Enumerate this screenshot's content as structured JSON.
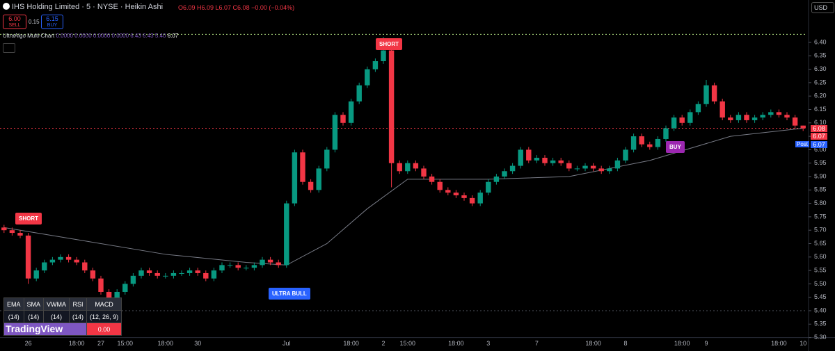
{
  "header": {
    "title": "IHS Holding Limited · 5 · NYSE · Heikin Ashi",
    "ohlc": "O6.09 H6.09 L6.07 C6.08 −0.00 (−0.04%)",
    "sell_price": "6.00",
    "sell": "SELL",
    "spread": "0.15",
    "buy_price": "6.15",
    "buy": "BUY",
    "currency": "USD",
    "indicator": "UltraAlgo Multi-Chart",
    "indicator_values": "0.0000 0.0000 0.0000 0.0000 6.43 6.43 5.40",
    "indicator_last": "6.07"
  },
  "price_labels": {
    "last": "6.08",
    "prev": "6.07",
    "post": "Post",
    "post_price": "6.07"
  },
  "signals": {
    "short_1": "SHORT",
    "ultra_bull": "ULTRA BULL",
    "short_2": "SHORT",
    "buy": "BUY"
  },
  "table": {
    "header": [
      "EMA",
      "SMA",
      "VWMA",
      "RSI",
      "MACD"
    ],
    "params": [
      "(14)",
      "(14)",
      "(14)",
      "(14)",
      "(12, 26, 9)"
    ],
    "macd_value": "0.00"
  },
  "logo": "TradingView",
  "chart_data": {
    "type": "candlestick",
    "up_color": "#089981",
    "down_color": "#f23645",
    "categories": [
      null,
      null,
      null,
      "26",
      null,
      null,
      null,
      null,
      null,
      "18:00",
      null,
      null,
      "27",
      null,
      null,
      "15:00",
      null,
      null,
      null,
      null,
      "18:00",
      null,
      null,
      null,
      "30",
      null,
      null,
      null,
      null,
      null,
      null,
      null,
      null,
      null,
      null,
      "Jul",
      null,
      null,
      null,
      null,
      null,
      null,
      null,
      "18:00",
      null,
      null,
      null,
      "2",
      null,
      null,
      "15:00",
      null,
      null,
      null,
      null,
      null,
      "18:00",
      null,
      null,
      null,
      "3",
      null,
      null,
      null,
      null,
      null,
      "7",
      null,
      null,
      null,
      null,
      null,
      null,
      "18:00",
      null,
      null,
      null,
      "8",
      null,
      null,
      null,
      null,
      null,
      null,
      "18:00",
      null,
      null,
      "9",
      null,
      null,
      null,
      null,
      null,
      null,
      null,
      null,
      "18:00",
      null,
      null,
      "10"
    ],
    "open": [
      5.71,
      5.7,
      5.69,
      5.68,
      5.52,
      5.55,
      5.58,
      5.59,
      5.6,
      5.59,
      5.58,
      5.55,
      5.52,
      5.47,
      5.43,
      5.47,
      5.5,
      5.53,
      5.55,
      5.54,
      5.53,
      5.53,
      5.54,
      5.54,
      5.55,
      5.54,
      5.52,
      5.55,
      5.57,
      5.57,
      5.56,
      5.56,
      5.57,
      5.59,
      5.58,
      5.57,
      5.8,
      5.99,
      5.88,
      5.85,
      5.93,
      6.0,
      6.13,
      6.1,
      6.18,
      6.24,
      6.3,
      6.33,
      6.37,
      5.95,
      5.92,
      5.95,
      5.93,
      5.9,
      5.88,
      5.85,
      5.84,
      5.83,
      5.82,
      5.8,
      5.84,
      5.88,
      5.9,
      5.92,
      5.94,
      6.0,
      5.96,
      5.97,
      5.95,
      5.96,
      5.95,
      5.93,
      5.93,
      5.94,
      5.93,
      5.92,
      5.93,
      5.96,
      6.0,
      6.05,
      6.02,
      6.01,
      6.04,
      6.08,
      6.12,
      6.1,
      6.14,
      6.17,
      6.24,
      6.18,
      6.12,
      6.11,
      6.13,
      6.11,
      6.12,
      6.13,
      6.14,
      6.13,
      6.12,
      6.09
    ],
    "high": [
      5.72,
      5.71,
      5.7,
      5.69,
      5.56,
      5.59,
      5.6,
      5.61,
      5.61,
      5.6,
      5.59,
      5.56,
      5.53,
      5.48,
      5.48,
      5.51,
      5.54,
      5.56,
      5.56,
      5.55,
      5.54,
      5.55,
      5.55,
      5.56,
      5.56,
      5.55,
      5.56,
      5.58,
      5.58,
      5.58,
      5.57,
      5.58,
      5.6,
      5.6,
      5.59,
      5.81,
      6.0,
      6.0,
      5.89,
      5.94,
      6.01,
      6.14,
      6.14,
      6.19,
      6.25,
      6.31,
      6.34,
      6.42,
      6.38,
      5.96,
      5.96,
      5.96,
      5.94,
      5.91,
      5.89,
      5.86,
      5.85,
      5.84,
      5.83,
      5.85,
      5.89,
      5.91,
      5.93,
      5.95,
      6.01,
      6.01,
      5.98,
      5.98,
      5.97,
      5.97,
      5.96,
      5.94,
      5.95,
      5.95,
      5.94,
      5.94,
      5.97,
      6.01,
      6.06,
      6.06,
      6.03,
      6.05,
      6.09,
      6.13,
      6.13,
      6.15,
      6.18,
      6.26,
      6.25,
      6.19,
      6.13,
      6.14,
      6.14,
      6.13,
      6.14,
      6.15,
      6.15,
      6.14,
      6.13,
      6.09
    ],
    "low": [
      5.69,
      5.68,
      5.67,
      5.5,
      5.51,
      5.54,
      5.57,
      5.58,
      5.58,
      5.57,
      5.54,
      5.51,
      5.46,
      5.41,
      5.42,
      5.46,
      5.49,
      5.52,
      5.53,
      5.52,
      5.52,
      5.52,
      5.53,
      5.53,
      5.53,
      5.51,
      5.51,
      5.54,
      5.56,
      5.55,
      5.55,
      5.55,
      5.56,
      5.57,
      5.56,
      5.56,
      5.79,
      5.87,
      5.84,
      5.84,
      5.92,
      5.99,
      6.09,
      6.09,
      6.17,
      6.23,
      6.29,
      6.32,
      5.86,
      5.91,
      5.91,
      5.92,
      5.89,
      5.87,
      5.84,
      5.83,
      5.82,
      5.81,
      5.79,
      5.79,
      5.83,
      5.87,
      5.89,
      5.91,
      5.93,
      5.95,
      5.95,
      5.94,
      5.94,
      5.94,
      5.92,
      5.92,
      5.92,
      5.92,
      5.91,
      5.91,
      5.92,
      5.95,
      5.99,
      6.01,
      6.0,
      6.0,
      6.03,
      6.07,
      6.09,
      6.09,
      6.13,
      6.16,
      6.17,
      6.11,
      6.1,
      6.1,
      6.1,
      6.1,
      6.11,
      6.12,
      6.12,
      6.11,
      6.08,
      6.07
    ],
    "close": [
      5.7,
      5.69,
      5.68,
      5.52,
      5.55,
      5.58,
      5.59,
      5.6,
      5.59,
      5.58,
      5.55,
      5.52,
      5.47,
      5.43,
      5.47,
      5.5,
      5.53,
      5.55,
      5.54,
      5.53,
      5.53,
      5.54,
      5.54,
      5.55,
      5.54,
      5.52,
      5.55,
      5.57,
      5.57,
      5.56,
      5.56,
      5.57,
      5.59,
      5.58,
      5.57,
      5.8,
      5.99,
      5.88,
      5.85,
      5.93,
      6.0,
      6.13,
      6.1,
      6.18,
      6.24,
      6.3,
      6.33,
      6.37,
      5.95,
      5.92,
      5.95,
      5.93,
      5.9,
      5.88,
      5.85,
      5.84,
      5.83,
      5.82,
      5.8,
      5.84,
      5.88,
      5.9,
      5.92,
      5.94,
      6.0,
      5.96,
      5.97,
      5.95,
      5.96,
      5.95,
      5.93,
      5.93,
      5.94,
      5.93,
      5.92,
      5.93,
      5.96,
      6.0,
      6.05,
      6.02,
      6.01,
      6.04,
      6.08,
      6.12,
      6.1,
      6.14,
      6.17,
      6.24,
      6.18,
      6.12,
      6.11,
      6.13,
      6.11,
      6.12,
      6.13,
      6.14,
      6.13,
      6.12,
      6.09,
      6.08
    ],
    "ma": {
      "color": "#787b86",
      "x": [
        0,
        10,
        20,
        30,
        35,
        40,
        45,
        50,
        60,
        70,
        80,
        90,
        99
      ],
      "values": [
        5.71,
        5.66,
        5.61,
        5.58,
        5.57,
        5.65,
        5.78,
        5.89,
        5.89,
        5.9,
        5.96,
        6.05,
        6.08
      ]
    },
    "hlines": [
      {
        "value": 6.43,
        "color": "#b8e986"
      },
      {
        "value": 6.08,
        "color": "#f23645"
      },
      {
        "value": 5.4,
        "color": "#50535e"
      }
    ],
    "ylim": [
      5.3,
      6.5
    ],
    "yticks": [
      {
        "value": 5.3,
        "label": "5.30"
      },
      5.35,
      {
        "value": 5.4,
        "label": "5.40"
      },
      5.45,
      {
        "value": 5.5,
        "label": "5.50"
      },
      5.55,
      {
        "value": 5.6,
        "label": "5.60"
      },
      5.65,
      {
        "value": 5.7,
        "label": "5.70"
      },
      5.75,
      {
        "value": 5.8,
        "label": "5.80"
      },
      5.85,
      {
        "value": 5.9,
        "label": "5.90"
      },
      5.95,
      {
        "value": 6.0,
        "label": "6.00"
      },
      6.05,
      {
        "value": 6.1,
        "label": "6.10"
      },
      6.15,
      {
        "value": 6.2,
        "label": "6.20"
      },
      6.25,
      {
        "value": 6.3,
        "label": "6.30"
      },
      6.35,
      {
        "value": 6.4,
        "label": "6.40"
      }
    ]
  }
}
